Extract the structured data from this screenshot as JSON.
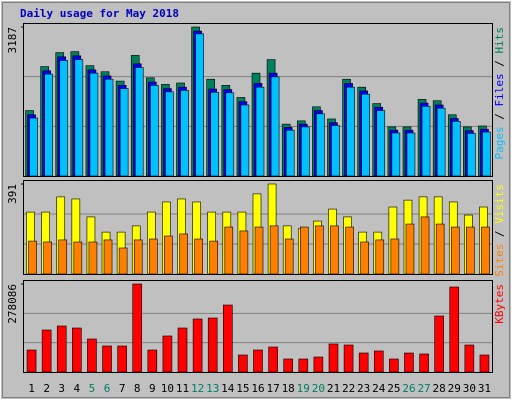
{
  "chart_data": {
    "type": "bar",
    "title": "Daily usage for May 2018",
    "categories": [
      "1",
      "2",
      "3",
      "4",
      "5",
      "6",
      "7",
      "8",
      "9",
      "10",
      "11",
      "12",
      "13",
      "14",
      "15",
      "16",
      "17",
      "18",
      "19",
      "20",
      "21",
      "22",
      "23",
      "24",
      "25",
      "26",
      "27",
      "28",
      "29",
      "30",
      "31"
    ],
    "category_colors": [
      "#000",
      "#000",
      "#000",
      "#000",
      "#00805c",
      "#00805c",
      "#000",
      "#000",
      "#000",
      "#000",
      "#000",
      "#00805c",
      "#00805c",
      "#000",
      "#000",
      "#000",
      "#000",
      "#000",
      "#00805c",
      "#00805c",
      "#000",
      "#000",
      "#000",
      "#000",
      "#000",
      "#00805c",
      "#00805c",
      "#000",
      "#000",
      "#000",
      "#000"
    ],
    "panels": [
      {
        "ylim": [
          0,
          3187
        ],
        "yticks": [
          3187
        ],
        "series": [
          {
            "name": "Hits",
            "color": "#00805c",
            "values": [
              1400,
              2340,
              2640,
              2660,
              2360,
              2230,
              2030,
              2580,
              2100,
              1960,
              1990,
              3187,
              2070,
              1940,
              1680,
              2200,
              2490,
              1110,
              1180,
              1480,
              1220,
              2070,
              1900,
              1550,
              1050,
              1050,
              1640,
              1610,
              1310,
              1050,
              1070
            ]
          },
          {
            "name": "Files",
            "color": "#0000ff",
            "values": [
              1310,
              2250,
              2550,
              2570,
              2270,
              2140,
              1940,
              2400,
              2010,
              1870,
              1900,
              3100,
              1860,
              1850,
              1590,
              1980,
              2200,
              1040,
              1110,
              1400,
              1140,
              1980,
              1820,
              1470,
              980,
              980,
              1560,
              1520,
              1230,
              970,
              1000
            ]
          },
          {
            "name": "Pages",
            "color": "#00c0ff",
            "values": [
              1240,
              2180,
              2470,
              2490,
              2200,
              2070,
              1870,
              2320,
              1940,
              1800,
              1830,
              3040,
              1790,
              1780,
              1520,
              1900,
              2120,
              980,
              1050,
              1330,
              1080,
              1900,
              1750,
              1400,
              920,
              920,
              1490,
              1450,
              1170,
              910,
              940
            ]
          }
        ]
      },
      {
        "ylim": [
          0,
          391
        ],
        "yticks": [
          391
        ],
        "series": [
          {
            "name": "Visits",
            "color": "#ffff00",
            "values": [
              269,
              269,
              335,
              326,
              248,
              182,
              182,
              209,
              269,
              313,
              326,
              313,
              269,
              269,
              269,
              348,
              391,
              209,
              196,
              230,
              282,
              248,
              182,
              182,
              291,
              321,
              335,
              335,
              313,
              256,
              291
            ]
          },
          {
            "name": "Sites",
            "color": "#ff8000",
            "values": [
              143,
              139,
              148,
              139,
              139,
              148,
              113,
              148,
              152,
              165,
              174,
              152,
              143,
              204,
              187,
              204,
              209,
              152,
              204,
              209,
              209,
              204,
              139,
              148,
              152,
              217,
              248,
              217,
              204,
              204,
              204
            ]
          }
        ]
      },
      {
        "ylim": [
          0,
          278086
        ],
        "yticks": [
          278086
        ],
        "series": [
          {
            "name": "KBytes",
            "color": "#ff0000",
            "values": [
              69520,
              132700,
              145400,
              139000,
              104300,
              82200,
              82200,
              278086,
              69520,
              113800,
              139000,
              167500,
              170600,
              211700,
              53700,
              69520,
              79000,
              41100,
              41100,
              47400,
              88500,
              85300,
              60000,
              66400,
              41100,
              60000,
              56900,
              177000,
              268600,
              85300,
              53700
            ]
          }
        ]
      }
    ]
  }
}
